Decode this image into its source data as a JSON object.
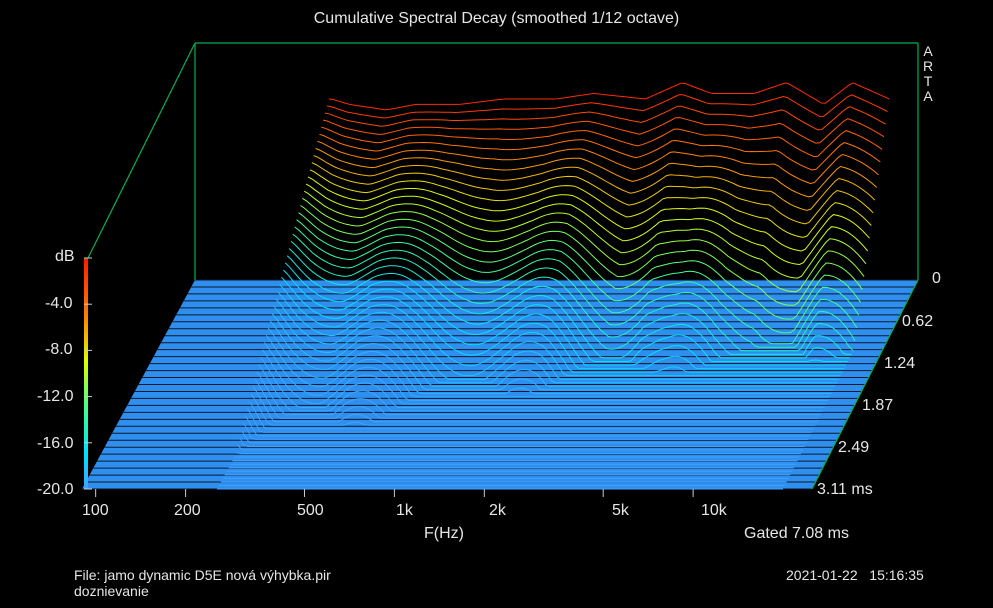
{
  "title": "Cumulative Spectral Decay (smoothed 1/12 octave)",
  "logo": "ARTA",
  "file_label": "File: jamo dynamic D5E nová výhybka.pir",
  "file_note": "doznievanie",
  "datetime": "2021-01-22   15:16:35",
  "gated": "Gated 7.08 ms",
  "colors": {
    "background": "#000000",
    "axes": "#00b050",
    "floor": "#2f8fef",
    "floor_lines": "#0a1a2a"
  },
  "chart_data": {
    "type": "waterfall",
    "title": "Cumulative Spectral Decay (smoothed 1/12 octave)",
    "xlabel": "F(Hz)",
    "ylabel": "dB",
    "zlabel_unit": "ms",
    "x_scale": "log",
    "xlim": [
      90,
      25000
    ],
    "x_ticks": [
      "100",
      "200",
      "500",
      "1k",
      "2k",
      "5k",
      "10k"
    ],
    "x_tick_values": [
      100,
      200,
      500,
      1000,
      2000,
      5000,
      10000
    ],
    "ylim": [
      -20,
      0
    ],
    "y_ticks": [
      "dB",
      "-4.0",
      "-8.0",
      "-12.0",
      "-16.0",
      "-20.0"
    ],
    "z_ticks": [
      "0",
      "0.62",
      "1.24",
      "1.87",
      "2.49",
      "3.11 ms"
    ],
    "time_range_ms": [
      0,
      3.11
    ],
    "colorbar": "rainbow (blue = -20 dB, red = 0 dB)",
    "grid": false,
    "initial_response_db": [
      [
        260,
        -3.5
      ],
      [
        300,
        -4
      ],
      [
        400,
        -4.5
      ],
      [
        500,
        -4
      ],
      [
        700,
        -4
      ],
      [
        1000,
        -3.5
      ],
      [
        1500,
        -3.5
      ],
      [
        2000,
        -3
      ],
      [
        3000,
        -3.5
      ],
      [
        4000,
        -2
      ],
      [
        5000,
        -3
      ],
      [
        7000,
        -3
      ],
      [
        9000,
        -2
      ],
      [
        12000,
        -4
      ],
      [
        15000,
        -2
      ],
      [
        20000,
        -3.5
      ]
    ]
  },
  "y_axis": {
    "labels": [
      "dB",
      "-4.0",
      "-8.0",
      "-12.0",
      "-16.0",
      "-20.0"
    ]
  },
  "x_axis": {
    "labels": [
      "100",
      "200",
      "500",
      "1k",
      "2k",
      "5k",
      "10k"
    ],
    "title": "F(Hz)"
  },
  "z_axis": {
    "labels": [
      "0",
      "0.62",
      "1.24",
      "1.87",
      "2.49",
      "3.11 ms"
    ]
  }
}
